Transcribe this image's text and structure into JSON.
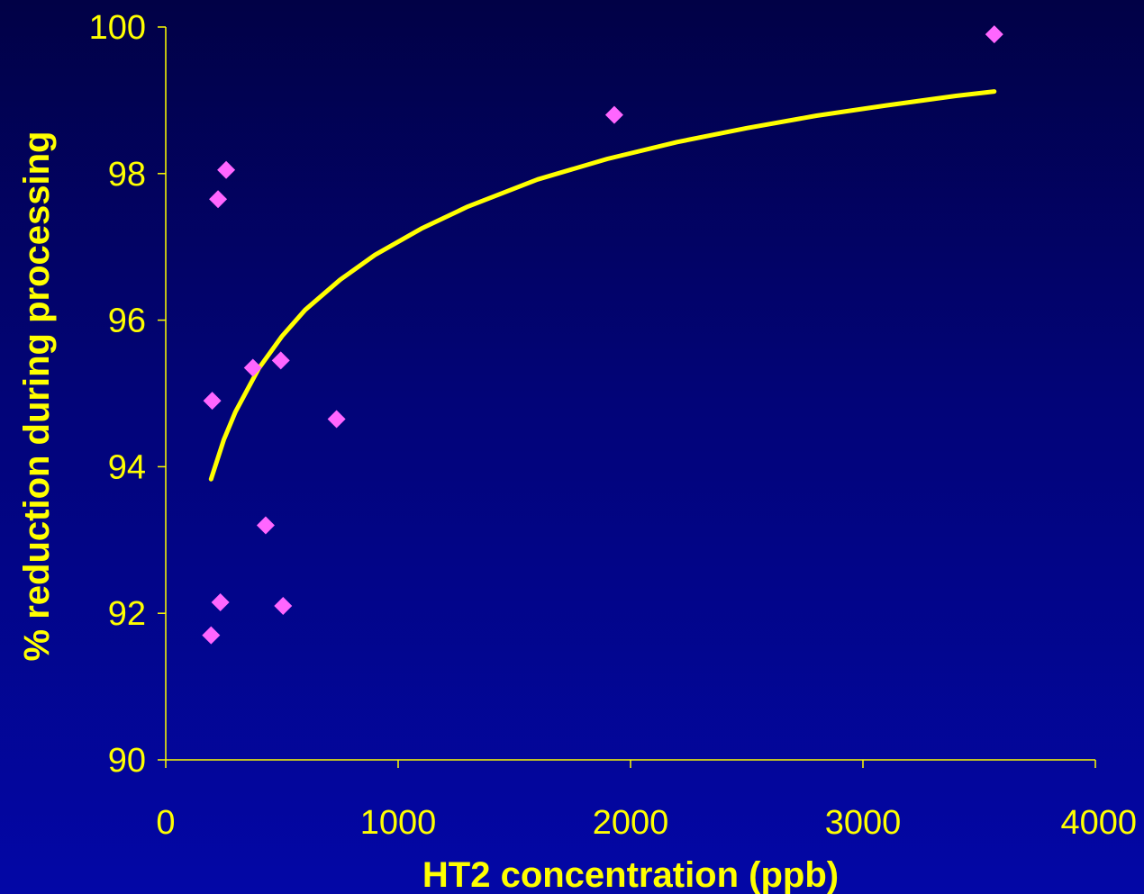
{
  "chart_data": {
    "type": "scatter",
    "title": "",
    "xlabel": "HT2 concentration (ppb)",
    "ylabel": "% reduction during processing",
    "xlim": [
      0,
      4000
    ],
    "ylim": [
      90,
      100
    ],
    "x_ticks": [
      "0",
      "1000",
      "2000",
      "3000",
      "4000"
    ],
    "y_ticks": [
      "90",
      "92",
      "94",
      "96",
      "98",
      "100"
    ],
    "grid": false,
    "legend": "none",
    "series": [
      {
        "type": "scatter",
        "marker": "diamond",
        "color": "#ff66ff",
        "points": [
          {
            "x": 195,
            "y": 91.7
          },
          {
            "x": 200,
            "y": 94.9
          },
          {
            "x": 225,
            "y": 97.65
          },
          {
            "x": 235,
            "y": 92.15
          },
          {
            "x": 260,
            "y": 98.05
          },
          {
            "x": 375,
            "y": 95.35
          },
          {
            "x": 430,
            "y": 93.2
          },
          {
            "x": 495,
            "y": 95.45
          },
          {
            "x": 505,
            "y": 92.1
          },
          {
            "x": 735,
            "y": 94.65
          },
          {
            "x": 1930,
            "y": 98.8
          },
          {
            "x": 3565,
            "y": 99.9
          }
        ]
      },
      {
        "type": "line",
        "color": "#ffff00",
        "trend": "logarithmic",
        "x_range": [
          195,
          3565
        ],
        "points": [
          {
            "x": 195,
            "y": 93.83
          },
          {
            "x": 250,
            "y": 94.37
          },
          {
            "x": 300,
            "y": 94.75
          },
          {
            "x": 400,
            "y": 95.34
          },
          {
            "x": 500,
            "y": 95.78
          },
          {
            "x": 600,
            "y": 96.14
          },
          {
            "x": 750,
            "y": 96.55
          },
          {
            "x": 900,
            "y": 96.89
          },
          {
            "x": 1100,
            "y": 97.25
          },
          {
            "x": 1300,
            "y": 97.55
          },
          {
            "x": 1600,
            "y": 97.92
          },
          {
            "x": 1900,
            "y": 98.2
          },
          {
            "x": 2200,
            "y": 98.43
          },
          {
            "x": 2500,
            "y": 98.62
          },
          {
            "x": 2800,
            "y": 98.79
          },
          {
            "x": 3100,
            "y": 98.93
          },
          {
            "x": 3400,
            "y": 99.06
          },
          {
            "x": 3565,
            "y": 99.12
          }
        ]
      }
    ]
  },
  "colors": {
    "axis": "#ffff00",
    "text": "#ffff00",
    "marker": "#ff66ff",
    "trendline": "#ffff00"
  }
}
